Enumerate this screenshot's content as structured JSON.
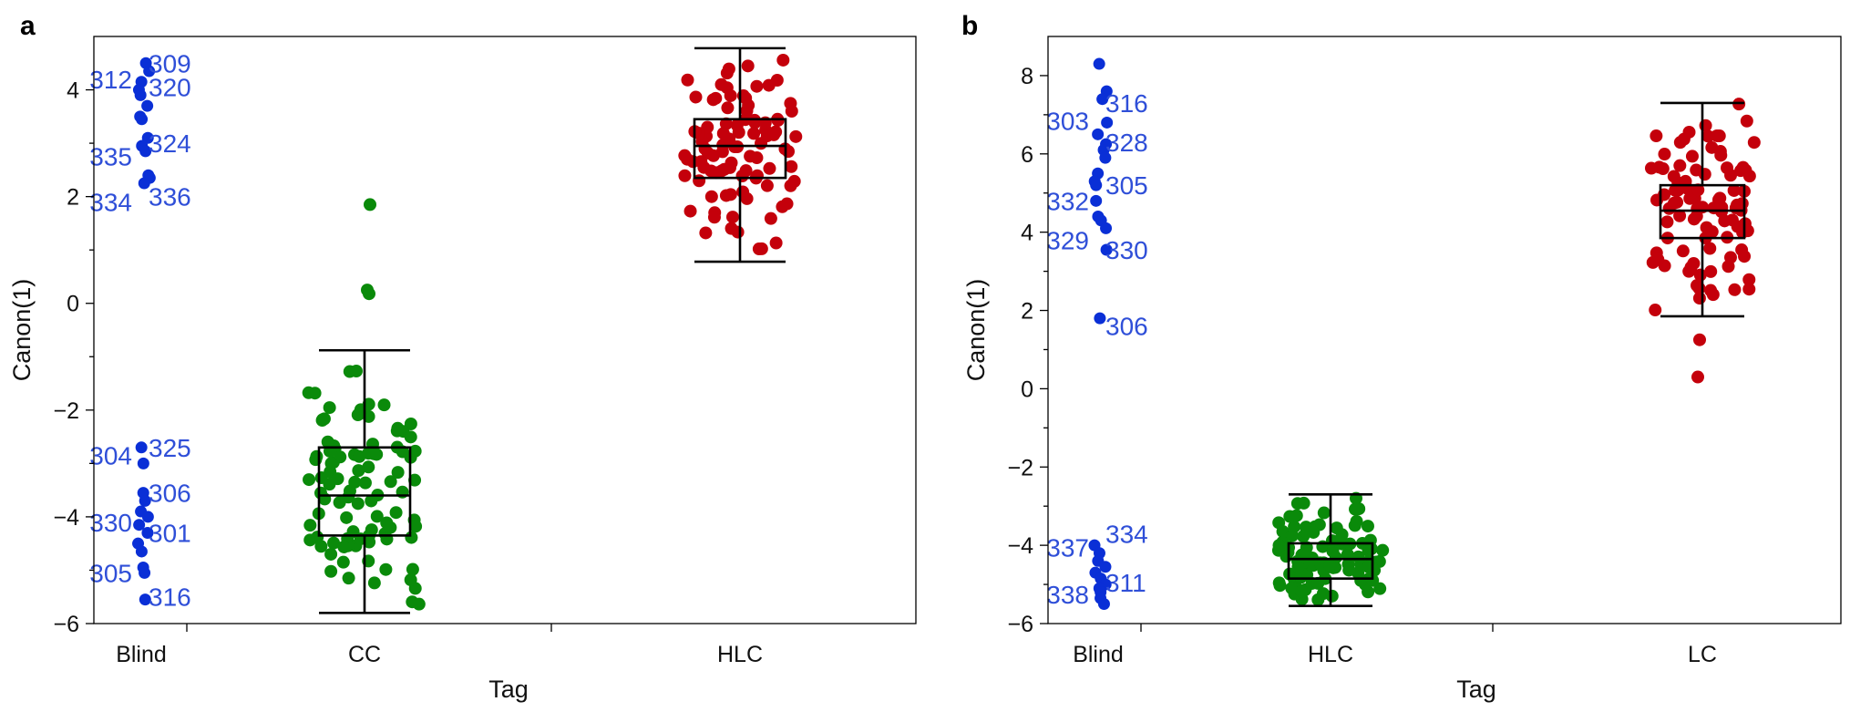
{
  "colors": {
    "blind": "#0a2fd6",
    "blind_label": "#2f4fd8",
    "green": "#0a8a0a",
    "red": "#c4000b"
  },
  "chart_data": [
    {
      "panel": "a",
      "type": "scatter",
      "xlabel": "Tag",
      "ylabel": "Canon(1)",
      "ylim": [
        -6,
        5
      ],
      "yticks": [
        -6,
        -4,
        -2,
        0,
        2,
        4
      ],
      "categories": [
        "Blind",
        "CC",
        "HLC"
      ],
      "blind_points": [
        {
          "y": 4.5
        },
        {
          "y": 4.35
        },
        {
          "y": 4.15
        },
        {
          "y": 4.0
        },
        {
          "y": 3.9
        },
        {
          "y": 3.7
        },
        {
          "y": 3.5
        },
        {
          "y": 3.45
        },
        {
          "y": 3.1
        },
        {
          "y": 2.95
        },
        {
          "y": 2.85
        },
        {
          "y": 2.4
        },
        {
          "y": 2.35
        },
        {
          "y": 2.25
        },
        {
          "y": -2.7
        },
        {
          "y": -3.0
        },
        {
          "y": -3.55
        },
        {
          "y": -3.7
        },
        {
          "y": -3.9
        },
        {
          "y": -4.0
        },
        {
          "y": -4.15
        },
        {
          "y": -4.3
        },
        {
          "y": -4.5
        },
        {
          "y": -4.65
        },
        {
          "y": -4.95
        },
        {
          "y": -5.05
        },
        {
          "y": -5.55
        }
      ],
      "point_labels": [
        {
          "text": "309",
          "y": 4.5,
          "side": "right"
        },
        {
          "text": "312",
          "y": 4.2,
          "side": "left"
        },
        {
          "text": "320",
          "y": 4.05,
          "side": "right"
        },
        {
          "text": "324",
          "y": 3.0,
          "side": "right"
        },
        {
          "text": "335",
          "y": 2.75,
          "side": "left"
        },
        {
          "text": "336",
          "y": 2.0,
          "side": "right"
        },
        {
          "text": "334",
          "y": 1.9,
          "side": "left"
        },
        {
          "text": "325",
          "y": -2.7,
          "side": "right"
        },
        {
          "text": "304",
          "y": -2.85,
          "side": "left"
        },
        {
          "text": "306",
          "y": -3.55,
          "side": "right"
        },
        {
          "text": "330",
          "y": -4.1,
          "side": "left"
        },
        {
          "text": "301",
          "y": -4.3,
          "side": "right"
        },
        {
          "text": "305",
          "y": -5.05,
          "side": "left"
        },
        {
          "text": "316",
          "y": -5.5,
          "side": "right"
        }
      ],
      "groups": [
        {
          "name": "CC",
          "color": "green",
          "box": {
            "whisker_low": -5.8,
            "q1": -4.35,
            "median": -3.6,
            "q3": -2.7,
            "whisker_high": -0.88
          }
        },
        {
          "name": "HLC",
          "color": "red",
          "box": {
            "whisker_low": 0.78,
            "q1": 2.35,
            "median": 2.95,
            "q3": 3.45,
            "whisker_high": 4.78
          }
        }
      ]
    },
    {
      "panel": "b",
      "type": "scatter",
      "xlabel": "Tag",
      "ylabel": "Canon(1)",
      "ylim": [
        -6,
        9
      ],
      "yticks": [
        -6,
        -4,
        -2,
        0,
        2,
        4,
        6,
        8
      ],
      "categories": [
        "Blind",
        "HLC",
        "LC"
      ],
      "blind_points": [
        {
          "y": 8.3
        },
        {
          "y": 7.6
        },
        {
          "y": 7.4
        },
        {
          "y": 6.8
        },
        {
          "y": 6.5
        },
        {
          "y": 6.25
        },
        {
          "y": 6.1
        },
        {
          "y": 5.9
        },
        {
          "y": 5.5
        },
        {
          "y": 5.3
        },
        {
          "y": 5.2
        },
        {
          "y": 4.8
        },
        {
          "y": 4.4
        },
        {
          "y": 4.3
        },
        {
          "y": 4.1
        },
        {
          "y": 3.55
        },
        {
          "y": 1.8
        },
        {
          "y": -4.0
        },
        {
          "y": -4.2
        },
        {
          "y": -4.4
        },
        {
          "y": -4.55
        },
        {
          "y": -4.7
        },
        {
          "y": -4.85
        },
        {
          "y": -5.0
        },
        {
          "y": -5.1
        },
        {
          "y": -5.2
        },
        {
          "y": -5.35
        },
        {
          "y": -5.5
        }
      ],
      "point_labels": [
        {
          "text": "316",
          "y": 7.3,
          "side": "right"
        },
        {
          "text": "303",
          "y": 6.85,
          "side": "left"
        },
        {
          "text": "328",
          "y": 6.3,
          "side": "right"
        },
        {
          "text": "305",
          "y": 5.2,
          "side": "right"
        },
        {
          "text": "332",
          "y": 4.8,
          "side": "left"
        },
        {
          "text": "329",
          "y": 3.8,
          "side": "left"
        },
        {
          "text": "330",
          "y": 3.55,
          "side": "right"
        },
        {
          "text": "306",
          "y": 1.6,
          "side": "right"
        },
        {
          "text": "334",
          "y": -3.7,
          "side": "right"
        },
        {
          "text": "337",
          "y": -4.05,
          "side": "left"
        },
        {
          "text": "311",
          "y": -4.95,
          "side": "right"
        },
        {
          "text": "338",
          "y": -5.25,
          "side": "left"
        }
      ],
      "groups": [
        {
          "name": "HLC",
          "color": "green",
          "box": {
            "whisker_low": -5.55,
            "q1": -4.85,
            "median": -4.35,
            "q3": -3.95,
            "whisker_high": -2.7
          }
        },
        {
          "name": "LC",
          "color": "red",
          "box": {
            "whisker_low": 1.85,
            "q1": 3.85,
            "median": 4.55,
            "q3": 5.2,
            "whisker_high": 7.3
          }
        }
      ]
    }
  ]
}
